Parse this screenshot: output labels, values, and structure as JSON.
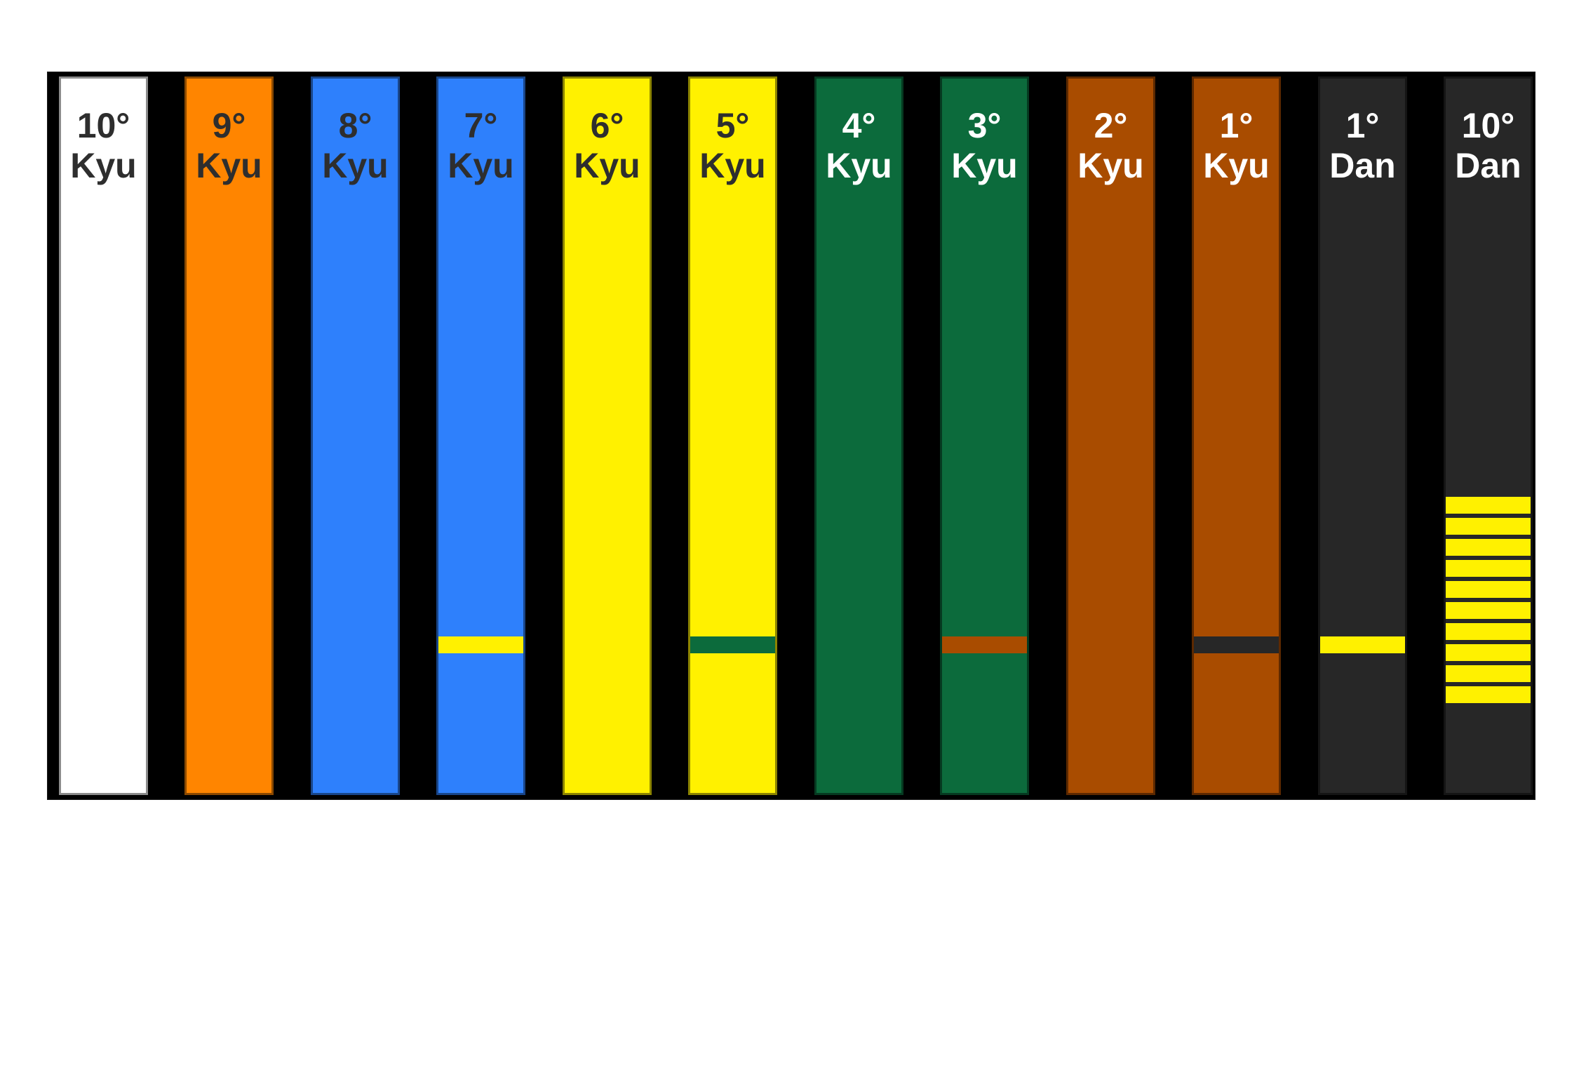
{
  "board": {
    "background_color": "#000000",
    "page_background_color": "#ffffff"
  },
  "palette": {
    "white": "#ffffff",
    "orange": "#ff8500",
    "blue": "#2e80fc",
    "yellow": "#fff100",
    "green": "#0c6b3c",
    "brown": "#a94c00",
    "black_belt": "#272727",
    "text_dark": "#2e2e2e",
    "text_light": "#ffffff"
  },
  "belts": [
    {
      "id": "kyu-10",
      "degree": "10°",
      "grade": "Kyu",
      "belt_color": "#ffffff",
      "text_color": "#2e2e2e",
      "stripe_color": null,
      "stripe_count": 0
    },
    {
      "id": "kyu-9",
      "degree": "9°",
      "grade": "Kyu",
      "belt_color": "#ff8500",
      "text_color": "#2e2e2e",
      "stripe_color": null,
      "stripe_count": 0
    },
    {
      "id": "kyu-8",
      "degree": "8°",
      "grade": "Kyu",
      "belt_color": "#2e80fc",
      "text_color": "#2e2e2e",
      "stripe_color": null,
      "stripe_count": 0
    },
    {
      "id": "kyu-7",
      "degree": "7°",
      "grade": "Kyu",
      "belt_color": "#2e80fc",
      "text_color": "#2e2e2e",
      "stripe_color": "#fff100",
      "stripe_count": 1
    },
    {
      "id": "kyu-6",
      "degree": "6°",
      "grade": "Kyu",
      "belt_color": "#fff100",
      "text_color": "#2e2e2e",
      "stripe_color": null,
      "stripe_count": 0
    },
    {
      "id": "kyu-5",
      "degree": "5°",
      "grade": "Kyu",
      "belt_color": "#fff100",
      "text_color": "#2e2e2e",
      "stripe_color": "#0c6b3c",
      "stripe_count": 1
    },
    {
      "id": "kyu-4",
      "degree": "4°",
      "grade": "Kyu",
      "belt_color": "#0c6b3c",
      "text_color": "#ffffff",
      "stripe_color": null,
      "stripe_count": 0
    },
    {
      "id": "kyu-3",
      "degree": "3°",
      "grade": "Kyu",
      "belt_color": "#0c6b3c",
      "text_color": "#ffffff",
      "stripe_color": "#a94c00",
      "stripe_count": 1
    },
    {
      "id": "kyu-2",
      "degree": "2°",
      "grade": "Kyu",
      "belt_color": "#a94c00",
      "text_color": "#ffffff",
      "stripe_color": null,
      "stripe_count": 0
    },
    {
      "id": "kyu-1",
      "degree": "1°",
      "grade": "Kyu",
      "belt_color": "#a94c00",
      "text_color": "#ffffff",
      "stripe_color": "#272727",
      "stripe_count": 1
    },
    {
      "id": "dan-1",
      "degree": "1°",
      "grade": "Dan",
      "belt_color": "#272727",
      "text_color": "#ffffff",
      "stripe_color": "#fff100",
      "stripe_count": 1
    },
    {
      "id": "dan-10",
      "degree": "10°",
      "grade": "Dan",
      "belt_color": "#272727",
      "text_color": "#ffffff",
      "stripe_color": "#fff100",
      "stripe_count": 10
    }
  ]
}
